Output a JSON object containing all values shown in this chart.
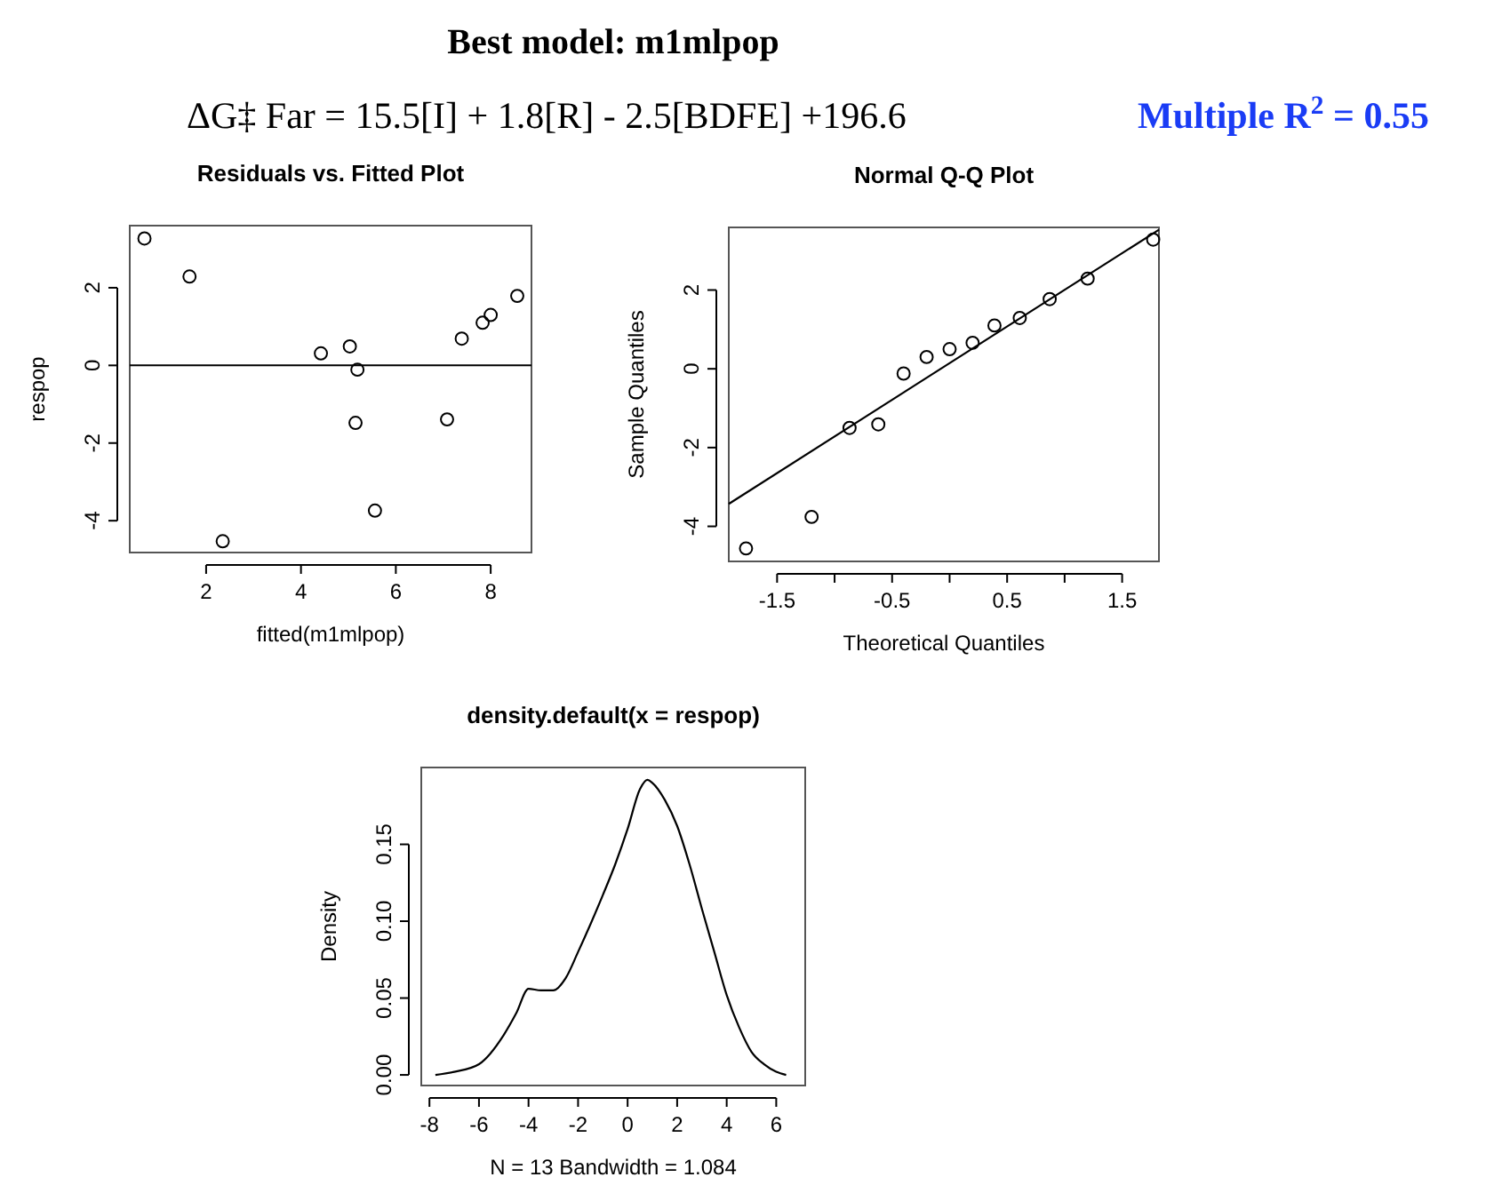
{
  "chart_data": [
    {
      "type": "other",
      "title": "Best model: m1mlpop",
      "annotations": [
        "ΔG‡ Far = 15.5[I] + 1.8[R] - 2.5[BDFE] +196.6",
        "Multiple R$^{2}$ = 0.55"
      ]
    },
    {
      "type": "scatter",
      "title": "Residuals vs. Fitted Plot",
      "xlabel": "fitted(m1mlpop)",
      "ylabel": "respop",
      "marker": "circle",
      "color": "#000000",
      "x": [
        0.7,
        1.65,
        2.35,
        4.42,
        5.03,
        5.19,
        5.15,
        5.56,
        7.08,
        7.39,
        7.83,
        8.0,
        8.56
      ],
      "values": [
        3.27,
        2.29,
        -4.53,
        0.31,
        0.49,
        -0.11,
        -1.48,
        -3.74,
        -1.39,
        0.69,
        1.1,
        1.3,
        1.79
      ],
      "xlim": [
        0.39,
        8.86
      ],
      "ylim": [
        -4.82,
        3.6
      ],
      "xticks": [
        2,
        4,
        6,
        8
      ],
      "yticks": [
        -4,
        -2,
        0,
        2
      ],
      "ref_lines": [
        {
          "axis": "y",
          "value": 0
        }
      ]
    },
    {
      "type": "scatter",
      "title": "Normal Q-Q Plot",
      "xlabel": "Theoretical Quantiles",
      "ylabel": "Sample Quantiles",
      "series": [
        {
          "marker": "circle",
          "color": "#000000",
          "x": [
            -1.77,
            -1.2,
            -0.87,
            -0.62,
            -0.4,
            -0.2,
            0.0,
            0.2,
            0.39,
            0.61,
            0.87,
            1.2,
            1.77
          ],
          "values": [
            -4.56,
            -3.76,
            -1.5,
            -1.41,
            -0.12,
            0.3,
            0.5,
            0.66,
            1.1,
            1.29,
            1.77,
            2.29,
            3.28
          ]
        },
        {
          "type": "line",
          "color": "#000000",
          "x": [
            -1.92,
            1.82
          ],
          "values": [
            -3.43,
            3.53
          ]
        }
      ],
      "xlim": [
        -1.92,
        1.82
      ],
      "ylim": [
        -4.89,
        3.59
      ],
      "xticks": [
        -1.5,
        {
          "value": -1,
          "label": null
        },
        -0.5,
        {
          "value": 0,
          "label": null
        },
        0.5,
        {
          "value": 1,
          "label": null
        },
        1.5
      ],
      "yticks": [
        -4,
        -2,
        0,
        2
      ]
    },
    {
      "type": "line",
      "title": "density.default(x = respop)",
      "xlabel": "N = 13   Bandwidth = 1.084",
      "ylabel": "Density",
      "color": "#000000",
      "x": [
        -7.76,
        -7,
        -6,
        -5,
        -4.5,
        -4,
        -3.5,
        -3,
        -2.5,
        -2,
        -1.5,
        -1,
        -0.5,
        0,
        0.5,
        0.8,
        1,
        1.5,
        2,
        2.5,
        3,
        3.5,
        4,
        4.5,
        5,
        5.5,
        6,
        6.4
      ],
      "values": [
        0.0,
        0.002,
        0.007,
        0.026,
        0.04,
        0.056,
        0.055,
        0.055,
        0.063,
        0.08,
        0.098,
        0.117,
        0.137,
        0.16,
        0.186,
        0.192,
        0.19,
        0.179,
        0.162,
        0.137,
        0.108,
        0.08,
        0.052,
        0.031,
        0.015,
        0.007,
        0.002,
        0.0
      ],
      "xlim": [
        -8.33,
        7.17
      ],
      "ylim": [
        -0.0069,
        0.2
      ],
      "xticks": [
        -8,
        -6,
        -4,
        -2,
        0,
        2,
        4,
        6
      ],
      "yticks": [
        {
          "value": 0,
          "label": "0.00"
        },
        0.05,
        {
          "value": 0.1,
          "label": "0.10"
        },
        0.15
      ]
    }
  ]
}
